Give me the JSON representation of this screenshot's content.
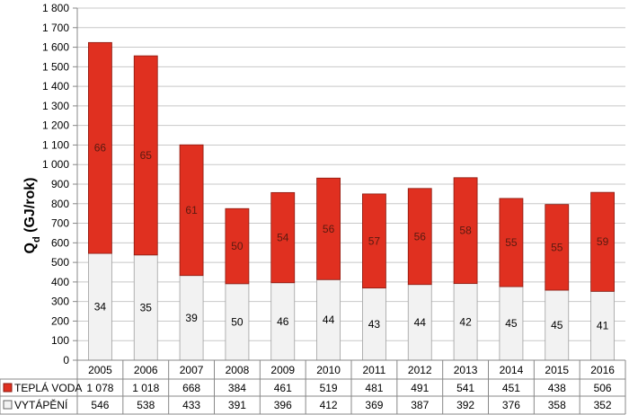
{
  "chart_data": {
    "type": "bar",
    "stacked": true,
    "ylabel_main": "Q",
    "ylabel_sub": "d",
    "ylabel_unit": " (GJ/rok)",
    "ylim": [
      0,
      1800
    ],
    "ytick_step": 100,
    "ytick_labels": [
      "0",
      "100",
      "200",
      "300",
      "400",
      "500",
      "600",
      "700",
      "800",
      "900",
      "1 000",
      "1 100",
      "1 200",
      "1 300",
      "1 400",
      "1 500",
      "1 600",
      "1 700",
      "1 800"
    ],
    "grid": true,
    "categories": [
      "2005",
      "2006",
      "2007",
      "2008",
      "2009",
      "2010",
      "2011",
      "2012",
      "2013",
      "2014",
      "2015",
      "2016"
    ],
    "series": [
      {
        "name": "VYTÁPĚNÍ",
        "color": "#f2f2f2",
        "values": [
          546,
          538,
          433,
          391,
          396,
          412,
          369,
          387,
          392,
          376,
          358,
          352
        ],
        "value_labels": [
          "546",
          "538",
          "433",
          "391",
          "396",
          "412",
          "369",
          "387",
          "392",
          "376",
          "358",
          "352"
        ],
        "percent_labels": [
          "34",
          "35",
          "39",
          "50",
          "46",
          "44",
          "43",
          "44",
          "42",
          "45",
          "45",
          "41"
        ]
      },
      {
        "name": "TEPLÁ VODA",
        "color": "#e03020",
        "values": [
          1078,
          1018,
          668,
          384,
          461,
          519,
          481,
          491,
          541,
          451,
          438,
          506
        ],
        "value_labels": [
          "1 078",
          "1 018",
          "668",
          "384",
          "461",
          "519",
          "481",
          "491",
          "541",
          "451",
          "438",
          "506"
        ],
        "percent_labels": [
          "66",
          "65",
          "61",
          "50",
          "54",
          "56",
          "57",
          "56",
          "58",
          "55",
          "55",
          "59"
        ]
      }
    ],
    "data_table": true
  }
}
